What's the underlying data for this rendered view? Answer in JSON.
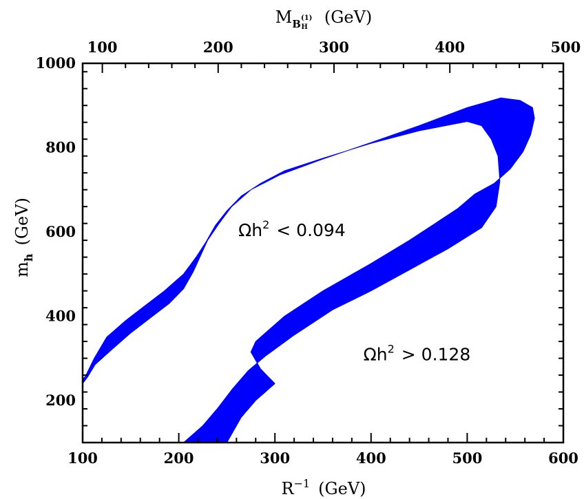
{
  "chart_data": {
    "type": "area",
    "xlabel": {
      "base": "R",
      "sup": "−1",
      "unit": "(GeV)"
    },
    "ylabel": {
      "base": "m",
      "sub": "h",
      "unit": "(GeV)"
    },
    "top_xlabel": {
      "base": "M",
      "sub": "B",
      "subsub": "H",
      "sup": "(1)",
      "unit": "(GeV)"
    },
    "xlim": [
      100,
      600
    ],
    "ylim": [
      100,
      1000
    ],
    "x_ticks": [
      100,
      200,
      300,
      400,
      500,
      600
    ],
    "y_ticks": [
      200,
      400,
      600,
      800,
      1000
    ],
    "x_ticks_top": [
      100,
      200,
      300,
      400,
      500
    ],
    "top_axis_scale": 0.83,
    "annotations": [
      {
        "text": "Ωh² < 0.094",
        "base": "Ωh",
        "sup": "2",
        "rest": "< 0.094",
        "x": 262,
        "y": 590
      },
      {
        "text": "Ωh² > 0.128",
        "base": "Ωh",
        "sup": "2",
        "rest": "> 0.128",
        "x": 392,
        "y": 295
      }
    ],
    "band_color": "#0000ff",
    "series": [
      {
        "polygon": [
          [
            100,
            240
          ],
          [
            105,
            255
          ],
          [
            113,
            285
          ],
          [
            130,
            320
          ],
          [
            150,
            360
          ],
          [
            170,
            395
          ],
          [
            190,
            430
          ],
          [
            205,
            465
          ],
          [
            215,
            505
          ],
          [
            222,
            540
          ],
          [
            230,
            580
          ],
          [
            242,
            620
          ],
          [
            255,
            660
          ],
          [
            275,
            700
          ],
          [
            305,
            735
          ],
          [
            350,
            773
          ],
          [
            400,
            812
          ],
          [
            450,
            852
          ],
          [
            500,
            895
          ],
          [
            535,
            918
          ],
          [
            555,
            912
          ],
          [
            568,
            895
          ],
          [
            570,
            870
          ],
          [
            566,
            830
          ],
          [
            558,
            790
          ],
          [
            545,
            750
          ],
          [
            528,
            715
          ],
          [
            508,
            690
          ],
          [
            490,
            655
          ],
          [
            470,
            625
          ],
          [
            440,
            580
          ],
          [
            400,
            525
          ],
          [
            350,
            460
          ],
          [
            310,
            400
          ],
          [
            280,
            340
          ],
          [
            275,
            315
          ],
          [
            285,
            275
          ],
          [
            300,
            240
          ],
          [
            280,
            200
          ],
          [
            265,
            160
          ],
          [
            255,
            120
          ],
          [
            250,
            100
          ],
          [
            205,
            100
          ],
          [
            225,
            140
          ],
          [
            240,
            180
          ],
          [
            255,
            225
          ],
          [
            272,
            270
          ],
          [
            290,
            305
          ],
          [
            320,
            355
          ],
          [
            360,
            415
          ],
          [
            400,
            460
          ],
          [
            440,
            510
          ],
          [
            480,
            560
          ],
          [
            515,
            610
          ],
          [
            530,
            660
          ],
          [
            534,
            720
          ],
          [
            532,
            780
          ],
          [
            525,
            820
          ],
          [
            515,
            852
          ],
          [
            500,
            862
          ],
          [
            450,
            840
          ],
          [
            400,
            810
          ],
          [
            350,
            775
          ],
          [
            310,
            745
          ],
          [
            285,
            715
          ],
          [
            265,
            685
          ],
          [
            250,
            650
          ],
          [
            238,
            615
          ],
          [
            228,
            575
          ],
          [
            218,
            540
          ],
          [
            205,
            500
          ],
          [
            185,
            460
          ],
          [
            165,
            425
          ],
          [
            145,
            390
          ],
          [
            125,
            350
          ],
          [
            112,
            300
          ],
          [
            103,
            258
          ],
          [
            100,
            250
          ]
        ]
      }
    ]
  }
}
